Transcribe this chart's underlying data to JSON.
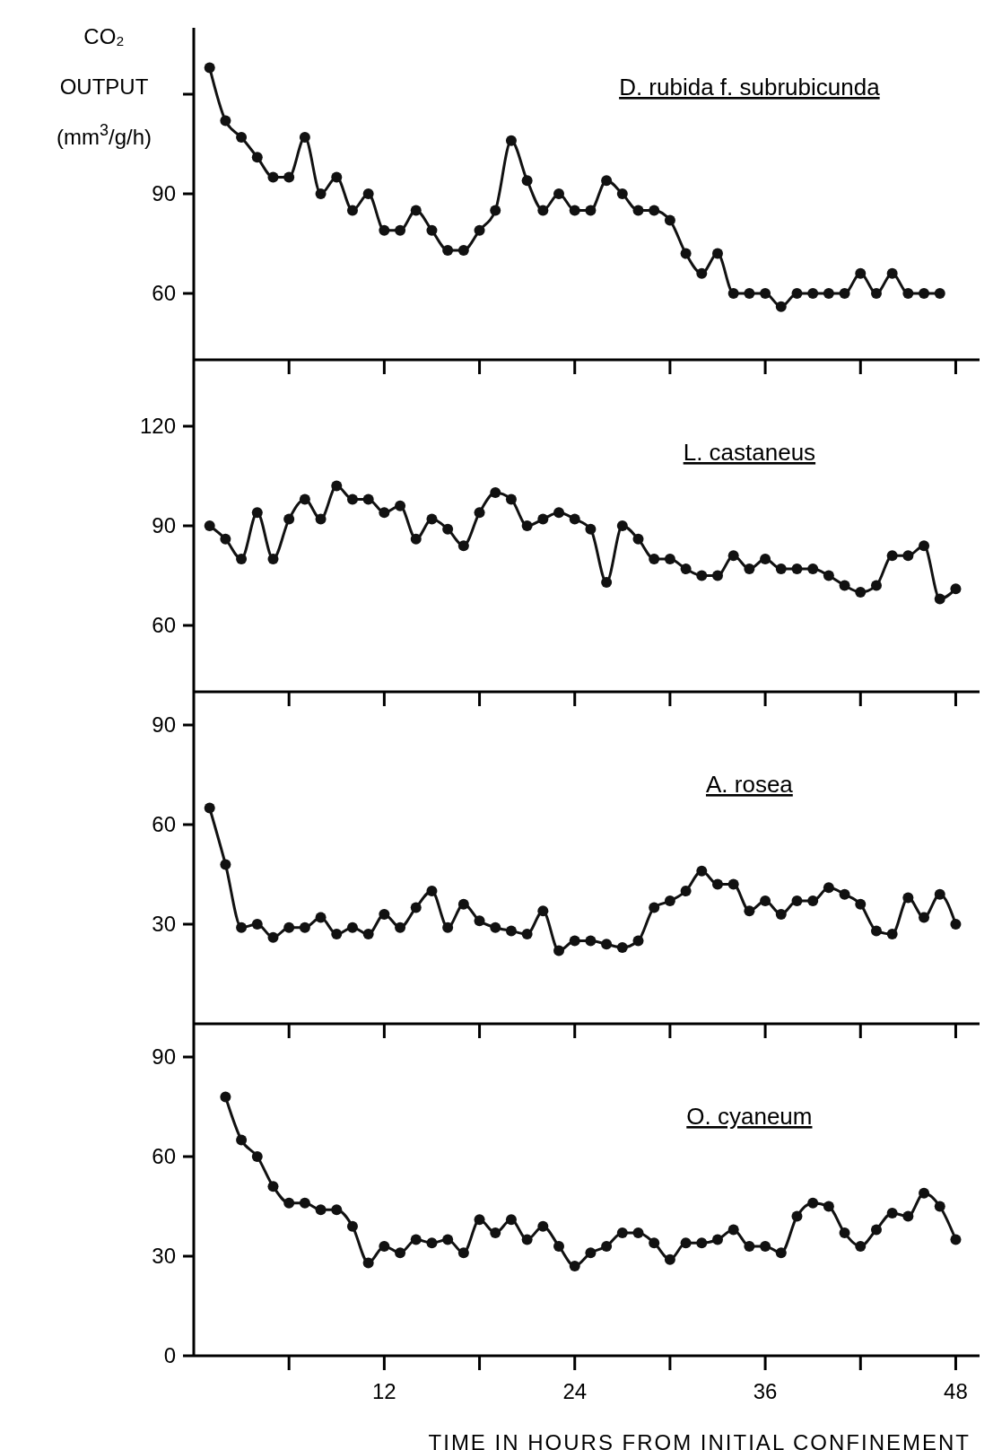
{
  "chart_data": [
    {
      "type": "line",
      "title": "D. rubida f. subrubicunda",
      "ylabel": "CO₂ OUTPUT (mm$^{3}$/g/h)",
      "color": "#111111",
      "marker": "circle",
      "tick_labels": "y",
      "x": [
        1,
        2,
        3,
        4,
        5,
        6,
        7,
        8,
        9,
        10,
        11,
        12,
        13,
        14,
        15,
        16,
        17,
        18,
        19,
        20,
        21,
        22,
        23,
        24,
        25,
        26,
        27,
        28,
        29,
        30,
        31,
        32,
        33,
        34,
        35,
        36,
        37,
        38,
        39,
        40,
        41,
        42,
        43,
        44,
        45,
        46,
        47
      ],
      "values": [
        128,
        112,
        107,
        101,
        95,
        95,
        107,
        90,
        95,
        85,
        90,
        79,
        79,
        85,
        79,
        73,
        73,
        79,
        85,
        106,
        94,
        85,
        90,
        85,
        85,
        94,
        90,
        85,
        85,
        82,
        72,
        66,
        72,
        60,
        60,
        60,
        56,
        60,
        60,
        60,
        60,
        66,
        60,
        66,
        60,
        60,
        60
      ],
      "xlim": [
        0,
        49.5
      ],
      "xticks": [
        {
          "value": 6,
          "label": null
        },
        {
          "value": 12,
          "label": null
        },
        {
          "value": 18,
          "label": null
        },
        {
          "value": 24,
          "label": null
        },
        {
          "value": 30,
          "label": null
        },
        {
          "value": 36,
          "label": null
        },
        {
          "value": 42,
          "label": null
        },
        {
          "value": 48,
          "label": null
        }
      ],
      "ylim": [
        40,
        140
      ],
      "yticks": [
        60,
        90,
        {
          "value": 120,
          "label": null
        }
      ]
    },
    {
      "type": "line",
      "title": "L. castaneus",
      "color": "#111111",
      "marker": "circle",
      "tick_labels": "y",
      "x": [
        1,
        2,
        3,
        4,
        5,
        6,
        7,
        8,
        9,
        10,
        11,
        12,
        13,
        14,
        15,
        16,
        17,
        18,
        19,
        20,
        21,
        22,
        23,
        24,
        25,
        26,
        27,
        28,
        29,
        30,
        31,
        32,
        33,
        34,
        35,
        36,
        37,
        38,
        39,
        40,
        41,
        42,
        43,
        44,
        45,
        46,
        47,
        48
      ],
      "values": [
        90,
        86,
        80,
        94,
        80,
        92,
        98,
        92,
        102,
        98,
        98,
        94,
        96,
        86,
        92,
        89,
        84,
        94,
        100,
        98,
        90,
        92,
        94,
        92,
        89,
        73,
        90,
        86,
        80,
        80,
        77,
        75,
        75,
        81,
        77,
        80,
        77,
        77,
        77,
        75,
        72,
        70,
        72,
        81,
        81,
        84,
        68,
        71
      ],
      "xlim": [
        0,
        49.5
      ],
      "xticks": [
        {
          "value": 6,
          "label": null
        },
        {
          "value": 12,
          "label": null
        },
        {
          "value": 18,
          "label": null
        },
        {
          "value": 24,
          "label": null
        },
        {
          "value": 30,
          "label": null
        },
        {
          "value": 36,
          "label": null
        },
        {
          "value": 42,
          "label": null
        },
        {
          "value": 48,
          "label": null
        }
      ],
      "ylim": [
        40,
        140
      ],
      "yticks": [
        60,
        90,
        120
      ]
    },
    {
      "type": "line",
      "title": "A. rosea",
      "color": "#111111",
      "marker": "circle",
      "tick_labels": "y",
      "x": [
        1,
        2,
        3,
        4,
        5,
        6,
        7,
        8,
        9,
        10,
        11,
        12,
        13,
        14,
        15,
        16,
        17,
        18,
        19,
        20,
        21,
        22,
        23,
        24,
        25,
        26,
        27,
        28,
        29,
        30,
        31,
        32,
        33,
        34,
        35,
        36,
        37,
        38,
        39,
        40,
        41,
        42,
        43,
        44,
        45,
        46,
        47,
        48
      ],
      "values": [
        65,
        48,
        29,
        30,
        26,
        29,
        29,
        32,
        27,
        29,
        27,
        33,
        29,
        35,
        40,
        29,
        36,
        31,
        29,
        28,
        27,
        34,
        22,
        25,
        25,
        24,
        23,
        25,
        35,
        37,
        40,
        46,
        42,
        42,
        34,
        37,
        33,
        37,
        37,
        41,
        39,
        36,
        28,
        27,
        38,
        32,
        39,
        30
      ],
      "xlim": [
        0,
        49.5
      ],
      "xticks": [
        {
          "value": 6,
          "label": null
        },
        {
          "value": 12,
          "label": null
        },
        {
          "value": 18,
          "label": null
        },
        {
          "value": 24,
          "label": null
        },
        {
          "value": 30,
          "label": null
        },
        {
          "value": 36,
          "label": null
        },
        {
          "value": 42,
          "label": null
        },
        {
          "value": 48,
          "label": null
        }
      ],
      "ylim": [
        0,
        100
      ],
      "yticks": [
        30,
        60,
        90
      ]
    },
    {
      "type": "line",
      "title": "O. cyaneum",
      "xlabel": "TIME IN HOURS FROM INITIAL CONFINEMENT",
      "color": "#111111",
      "marker": "circle",
      "x": [
        2,
        3,
        4,
        5,
        6,
        7,
        8,
        9,
        10,
        11,
        12,
        13,
        14,
        15,
        16,
        17,
        18,
        19,
        20,
        21,
        22,
        23,
        24,
        25,
        26,
        27,
        28,
        29,
        30,
        31,
        32,
        33,
        34,
        35,
        36,
        37,
        38,
        39,
        40,
        41,
        42,
        43,
        44,
        45,
        46,
        47,
        48
      ],
      "values": [
        78,
        65,
        60,
        51,
        46,
        46,
        44,
        44,
        39,
        28,
        33,
        31,
        35,
        34,
        35,
        31,
        41,
        37,
        41,
        35,
        39,
        33,
        27,
        31,
        33,
        37,
        37,
        34,
        29,
        34,
        34,
        35,
        38,
        33,
        33,
        31,
        42,
        46,
        45,
        37,
        33,
        38,
        43,
        42,
        49,
        45,
        35
      ],
      "xlim": [
        0,
        49.5
      ],
      "xticks": [
        {
          "value": 6,
          "label": null
        },
        12,
        {
          "value": 18,
          "label": null
        },
        24,
        {
          "value": 30,
          "label": null
        },
        36,
        {
          "value": 42,
          "label": null
        },
        48
      ],
      "ylim": [
        0,
        100
      ],
      "yticks": [
        0,
        30,
        60,
        90
      ]
    }
  ]
}
